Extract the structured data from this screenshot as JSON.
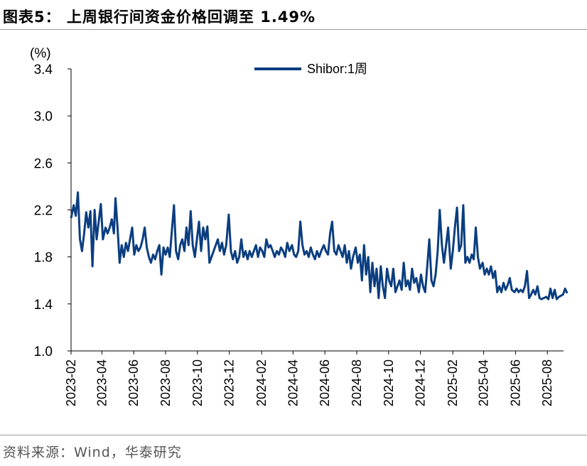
{
  "header": {
    "title": "图表5：  上周银行间资金价格回调至 1.49%"
  },
  "footer": {
    "source": "资料来源：Wind，华泰研究"
  },
  "colors": {
    "series": "#0b3e80",
    "axis": "#000000",
    "rule": "#9a9a9a"
  },
  "chart_data": {
    "type": "line",
    "title": "",
    "ylabel": "(%)",
    "xlabel": "",
    "ylim": [
      1.0,
      3.4
    ],
    "yticks": [
      1.0,
      1.4,
      1.8,
      2.2,
      2.6,
      3.0,
      3.4
    ],
    "ytick_labels": [
      "1.0",
      "1.4",
      "1.8",
      "2.2",
      "2.6",
      "3.0",
      "3.4"
    ],
    "xlim": [
      "2023-02",
      "2025-09"
    ],
    "xticks": [
      "2023-02",
      "2023-04",
      "2023-06",
      "2023-08",
      "2023-10",
      "2023-12",
      "2024-02",
      "2024-04",
      "2024-06",
      "2024-08",
      "2024-10",
      "2024-12",
      "2025-02",
      "2025-04",
      "2025-06",
      "2025-08"
    ],
    "legend": {
      "position": "top-center"
    },
    "grid": false,
    "series": [
      {
        "name": "Shibor:1周",
        "points": [
          [
            "2023-02-01",
            2.13
          ],
          [
            "2023-02-06",
            2.24
          ],
          [
            "2023-02-10",
            2.15
          ],
          [
            "2023-02-14",
            2.35
          ],
          [
            "2023-02-18",
            1.95
          ],
          [
            "2023-02-22",
            1.85
          ],
          [
            "2023-02-26",
            2.0
          ],
          [
            "2023-03-02",
            2.18
          ],
          [
            "2023-03-06",
            2.05
          ],
          [
            "2023-03-10",
            2.19
          ],
          [
            "2023-03-14",
            1.72
          ],
          [
            "2023-03-18",
            2.2
          ],
          [
            "2023-03-22",
            1.95
          ],
          [
            "2023-03-26",
            2.1
          ],
          [
            "2023-03-30",
            2.25
          ],
          [
            "2023-04-03",
            1.95
          ],
          [
            "2023-04-08",
            2.05
          ],
          [
            "2023-04-12",
            2.0
          ],
          [
            "2023-04-16",
            2.05
          ],
          [
            "2023-04-20",
            2.12
          ],
          [
            "2023-04-24",
            2.0
          ],
          [
            "2023-04-27",
            2.3
          ],
          [
            "2023-05-01",
            2.05
          ],
          [
            "2023-05-05",
            1.75
          ],
          [
            "2023-05-09",
            1.9
          ],
          [
            "2023-05-13",
            1.8
          ],
          [
            "2023-05-17",
            1.92
          ],
          [
            "2023-05-21",
            1.85
          ],
          [
            "2023-05-25",
            1.95
          ],
          [
            "2023-05-29",
            2.05
          ],
          [
            "2023-06-02",
            1.82
          ],
          [
            "2023-06-06",
            1.9
          ],
          [
            "2023-06-10",
            1.85
          ],
          [
            "2023-06-14",
            1.88
          ],
          [
            "2023-06-18",
            1.95
          ],
          [
            "2023-06-22",
            2.05
          ],
          [
            "2023-06-26",
            1.88
          ],
          [
            "2023-06-30",
            1.8
          ],
          [
            "2023-07-04",
            1.75
          ],
          [
            "2023-07-08",
            1.82
          ],
          [
            "2023-07-12",
            1.78
          ],
          [
            "2023-07-16",
            1.85
          ],
          [
            "2023-07-20",
            1.9
          ],
          [
            "2023-07-24",
            1.65
          ],
          [
            "2023-07-28",
            1.88
          ],
          [
            "2023-08-01",
            1.82
          ],
          [
            "2023-08-05",
            1.88
          ],
          [
            "2023-08-09",
            1.8
          ],
          [
            "2023-08-13",
            2.02
          ],
          [
            "2023-08-17",
            2.24
          ],
          [
            "2023-08-21",
            1.85
          ],
          [
            "2023-08-25",
            1.78
          ],
          [
            "2023-08-29",
            1.9
          ],
          [
            "2023-09-02",
            1.95
          ],
          [
            "2023-09-06",
            1.85
          ],
          [
            "2023-09-10",
            2.05
          ],
          [
            "2023-09-14",
            1.9
          ],
          [
            "2023-09-18",
            2.19
          ],
          [
            "2023-09-22",
            1.9
          ],
          [
            "2023-09-26",
            1.8
          ],
          [
            "2023-09-30",
            1.95
          ],
          [
            "2023-10-04",
            2.1
          ],
          [
            "2023-10-08",
            1.85
          ],
          [
            "2023-10-12",
            2.05
          ],
          [
            "2023-10-16",
            1.95
          ],
          [
            "2023-10-20",
            2.06
          ],
          [
            "2023-10-24",
            1.75
          ],
          [
            "2023-10-28",
            1.8
          ],
          [
            "2023-11-01",
            1.85
          ],
          [
            "2023-11-05",
            1.9
          ],
          [
            "2023-11-09",
            1.95
          ],
          [
            "2023-11-13",
            1.85
          ],
          [
            "2023-11-17",
            1.92
          ],
          [
            "2023-11-21",
            1.82
          ],
          [
            "2023-11-25",
            1.9
          ],
          [
            "2023-11-30",
            2.16
          ],
          [
            "2023-12-04",
            1.85
          ],
          [
            "2023-12-08",
            1.78
          ],
          [
            "2023-12-12",
            1.85
          ],
          [
            "2023-12-16",
            1.75
          ],
          [
            "2023-12-20",
            1.8
          ],
          [
            "2023-12-24",
            1.95
          ],
          [
            "2023-12-28",
            1.8
          ],
          [
            "2024-01-01",
            1.85
          ],
          [
            "2024-01-05",
            1.78
          ],
          [
            "2024-01-09",
            1.85
          ],
          [
            "2024-01-13",
            1.8
          ],
          [
            "2024-01-17",
            1.85
          ],
          [
            "2024-01-21",
            1.9
          ],
          [
            "2024-01-25",
            1.8
          ],
          [
            "2024-01-29",
            1.88
          ],
          [
            "2024-02-02",
            1.85
          ],
          [
            "2024-02-06",
            1.8
          ],
          [
            "2024-02-10",
            1.95
          ],
          [
            "2024-02-14",
            1.88
          ],
          [
            "2024-02-18",
            1.9
          ],
          [
            "2024-02-22",
            1.85
          ],
          [
            "2024-02-26",
            1.8
          ],
          [
            "2024-03-01",
            1.85
          ],
          [
            "2024-03-05",
            1.82
          ],
          [
            "2024-03-09",
            1.88
          ],
          [
            "2024-03-13",
            1.85
          ],
          [
            "2024-03-17",
            1.8
          ],
          [
            "2024-03-21",
            1.92
          ],
          [
            "2024-03-25",
            1.85
          ],
          [
            "2024-03-30",
            1.9
          ],
          [
            "2024-04-03",
            1.82
          ],
          [
            "2024-04-07",
            1.8
          ],
          [
            "2024-04-11",
            1.85
          ],
          [
            "2024-04-15",
            2.1
          ],
          [
            "2024-04-19",
            1.9
          ],
          [
            "2024-04-23",
            1.82
          ],
          [
            "2024-04-27",
            1.85
          ],
          [
            "2024-05-01",
            1.8
          ],
          [
            "2024-05-05",
            1.88
          ],
          [
            "2024-05-09",
            1.82
          ],
          [
            "2024-05-13",
            1.78
          ],
          [
            "2024-05-17",
            1.85
          ],
          [
            "2024-05-21",
            1.8
          ],
          [
            "2024-05-25",
            1.85
          ],
          [
            "2024-05-30",
            1.9
          ],
          [
            "2024-06-03",
            1.85
          ],
          [
            "2024-06-07",
            1.82
          ],
          [
            "2024-06-11",
            2.0
          ],
          [
            "2024-06-15",
            2.1
          ],
          [
            "2024-06-19",
            1.85
          ],
          [
            "2024-06-23",
            1.82
          ],
          [
            "2024-06-27",
            1.9
          ],
          [
            "2024-07-01",
            1.85
          ],
          [
            "2024-07-05",
            1.8
          ],
          [
            "2024-07-09",
            1.9
          ],
          [
            "2024-07-13",
            1.75
          ],
          [
            "2024-07-17",
            1.85
          ],
          [
            "2024-07-21",
            1.7
          ],
          [
            "2024-07-25",
            1.8
          ],
          [
            "2024-07-30",
            1.88
          ],
          [
            "2024-08-03",
            1.75
          ],
          [
            "2024-08-07",
            1.82
          ],
          [
            "2024-08-11",
            1.6
          ],
          [
            "2024-08-15",
            1.9
          ],
          [
            "2024-08-19",
            1.65
          ],
          [
            "2024-08-23",
            1.8
          ],
          [
            "2024-08-27",
            1.5
          ],
          [
            "2024-08-31",
            1.75
          ],
          [
            "2024-09-04",
            1.55
          ],
          [
            "2024-09-08",
            1.7
          ],
          [
            "2024-09-12",
            1.45
          ],
          [
            "2024-09-16",
            1.72
          ],
          [
            "2024-09-20",
            1.55
          ],
          [
            "2024-09-24",
            1.45
          ],
          [
            "2024-09-28",
            1.7
          ],
          [
            "2024-10-02",
            1.6
          ],
          [
            "2024-10-06",
            1.55
          ],
          [
            "2024-10-10",
            1.7
          ],
          [
            "2024-10-14",
            1.5
          ],
          [
            "2024-10-18",
            1.55
          ],
          [
            "2024-10-22",
            1.6
          ],
          [
            "2024-10-26",
            1.52
          ],
          [
            "2024-10-30",
            1.75
          ],
          [
            "2024-11-03",
            1.55
          ],
          [
            "2024-11-07",
            1.6
          ],
          [
            "2024-11-11",
            1.52
          ],
          [
            "2024-11-15",
            1.7
          ],
          [
            "2024-11-19",
            1.58
          ],
          [
            "2024-11-23",
            1.62
          ],
          [
            "2024-11-28",
            1.5
          ],
          [
            "2024-12-02",
            1.65
          ],
          [
            "2024-12-06",
            1.55
          ],
          [
            "2024-12-10",
            1.5
          ],
          [
            "2024-12-14",
            1.72
          ],
          [
            "2024-12-18",
            1.95
          ],
          [
            "2024-12-22",
            1.6
          ],
          [
            "2024-12-26",
            1.55
          ],
          [
            "2024-12-30",
            1.65
          ],
          [
            "2025-01-03",
            1.85
          ],
          [
            "2025-01-07",
            2.2
          ],
          [
            "2025-01-11",
            1.9
          ],
          [
            "2025-01-15",
            1.75
          ],
          [
            "2025-01-19",
            1.9
          ],
          [
            "2025-01-23",
            2.05
          ],
          [
            "2025-01-28",
            1.7
          ],
          [
            "2025-02-01",
            1.85
          ],
          [
            "2025-02-05",
            2.05
          ],
          [
            "2025-02-09",
            2.22
          ],
          [
            "2025-02-13",
            1.85
          ],
          [
            "2025-02-17",
            1.9
          ],
          [
            "2025-02-21",
            2.24
          ],
          [
            "2025-02-25",
            1.75
          ],
          [
            "2025-03-01",
            1.8
          ],
          [
            "2025-03-05",
            1.75
          ],
          [
            "2025-03-09",
            1.82
          ],
          [
            "2025-03-13",
            1.78
          ],
          [
            "2025-03-17",
            2.05
          ],
          [
            "2025-03-21",
            1.8
          ],
          [
            "2025-03-25",
            1.7
          ],
          [
            "2025-03-30",
            1.75
          ],
          [
            "2025-04-03",
            1.65
          ],
          [
            "2025-04-07",
            1.7
          ],
          [
            "2025-04-11",
            1.65
          ],
          [
            "2025-04-15",
            1.72
          ],
          [
            "2025-04-19",
            1.62
          ],
          [
            "2025-04-23",
            1.68
          ],
          [
            "2025-04-27",
            1.5
          ],
          [
            "2025-05-01",
            1.55
          ],
          [
            "2025-05-05",
            1.5
          ],
          [
            "2025-05-09",
            1.58
          ],
          [
            "2025-05-13",
            1.52
          ],
          [
            "2025-05-17",
            1.56
          ],
          [
            "2025-05-21",
            1.62
          ],
          [
            "2025-05-25",
            1.52
          ],
          [
            "2025-05-30",
            1.5
          ],
          [
            "2025-06-03",
            1.53
          ],
          [
            "2025-06-07",
            1.5
          ],
          [
            "2025-06-11",
            1.52
          ],
          [
            "2025-06-15",
            1.5
          ],
          [
            "2025-06-19",
            1.55
          ],
          [
            "2025-06-23",
            1.68
          ],
          [
            "2025-06-27",
            1.45
          ],
          [
            "2025-07-01",
            1.48
          ],
          [
            "2025-07-05",
            1.52
          ],
          [
            "2025-07-09",
            1.48
          ],
          [
            "2025-07-13",
            1.55
          ],
          [
            "2025-07-17",
            1.45
          ],
          [
            "2025-07-21",
            1.44
          ],
          [
            "2025-07-25",
            1.45
          ],
          [
            "2025-07-30",
            1.46
          ],
          [
            "2025-08-03",
            1.44
          ],
          [
            "2025-08-07",
            1.53
          ],
          [
            "2025-08-11",
            1.45
          ],
          [
            "2025-08-15",
            1.52
          ],
          [
            "2025-08-19",
            1.44
          ],
          [
            "2025-08-23",
            1.46
          ],
          [
            "2025-08-27",
            1.47
          ],
          [
            "2025-08-31",
            1.48
          ],
          [
            "2025-09-04",
            1.53
          ],
          [
            "2025-09-08",
            1.49
          ]
        ]
      }
    ]
  }
}
